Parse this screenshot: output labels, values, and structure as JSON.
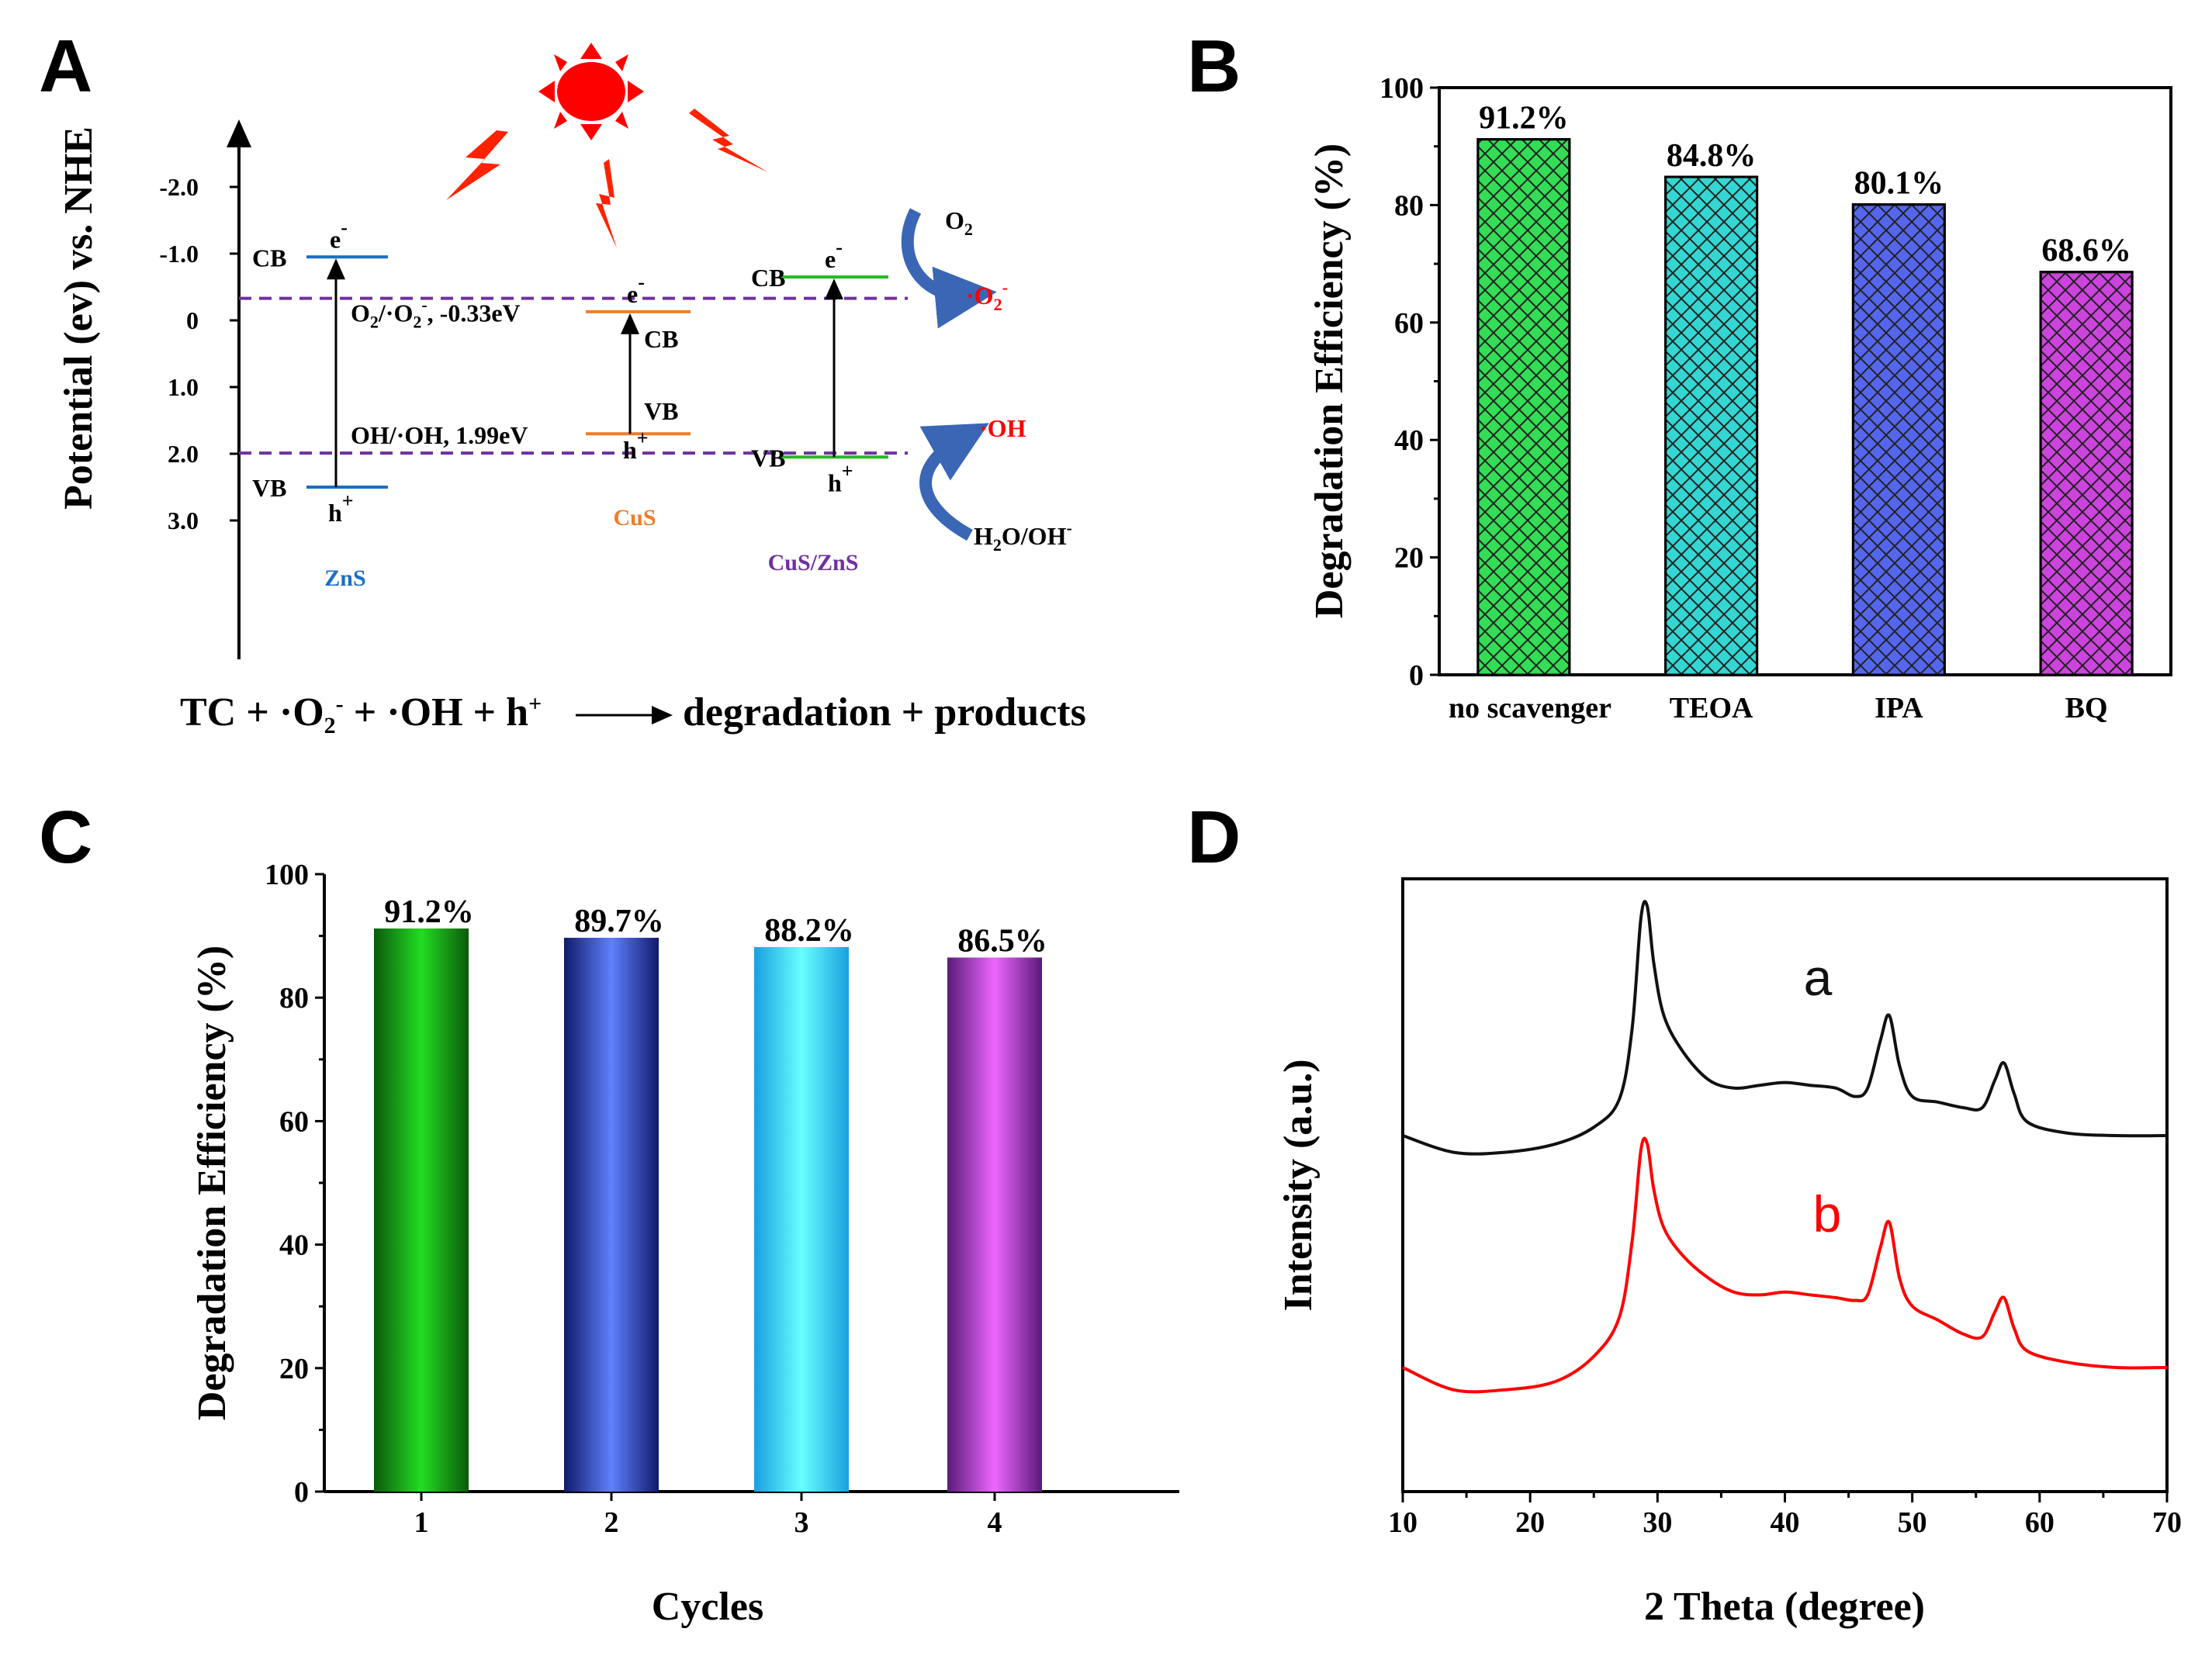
{
  "panel_labels": {
    "A": "A",
    "B": "B",
    "C": "C",
    "D": "D"
  },
  "colors": {
    "zns": "#1a6fc4",
    "cus": "#ee7d28",
    "cuszns": "#7030a0",
    "cuszns_level": "#22bb22",
    "dashed": "#7030a0",
    "sun": "#ff0000",
    "bolt": "#ff2200",
    "arrow_blue": "#3a66b5",
    "radical": "#ff0000",
    "curve_a": "#111111",
    "curve_b": "#ff0000"
  },
  "chart_data": [
    {
      "type": "diagram",
      "panel": "A",
      "ylabel": "Potential (ev) vs. NHE",
      "y_ticks": [
        "-2.0",
        "-1.0",
        "0",
        "1.0",
        "2.0",
        "3.0"
      ],
      "y_tick_values": [
        -2.0,
        -1.0,
        0,
        1.0,
        2.0,
        3.0
      ],
      "dashed_lines": [
        {
          "label": "O2/·O2-, -0.33eV",
          "label_parts": {
            "a": "O",
            "a_sub": "2",
            "b": "/·O",
            "b_sub": "2",
            "b_sup": "-",
            "c": ", -0.33eV"
          },
          "value": -0.33
        },
        {
          "label": "OH/·OH, 1.99eV",
          "value": 1.99
        }
      ],
      "materials": [
        {
          "name": "ZnS",
          "cb_label": "CB",
          "vb_label": "VB",
          "cb": -0.95,
          "vb": 2.5,
          "e": "e",
          "e_sup": "-",
          "h": "h",
          "h_sup": "+"
        },
        {
          "name": "CuS",
          "cb_label": "CB",
          "vb_label": "VB",
          "cb": -0.13,
          "vb": 1.7,
          "e": "e",
          "e_sup": "-",
          "h": "h",
          "h_sup": "+"
        },
        {
          "name": "CuS/ZnS",
          "cb_label": "CB",
          "vb_label": "VB",
          "cb": -0.65,
          "vb": 2.05,
          "e": "e",
          "e_sup": "-",
          "h": "h",
          "h_sup": "+"
        }
      ],
      "species": {
        "o2": "O",
        "o2_sub": "2",
        "o2rad": "·O",
        "o2rad_sub": "2",
        "o2rad_sup": "-",
        "oh": "·OH",
        "h2o_a": "H",
        "h2o_sub": "2",
        "h2o_b": "O/OH",
        "h2o_sup": "-"
      },
      "equation": {
        "p1": "TC + ·O",
        "p1_sub": "2",
        "p1_sup": "-",
        "p2": " + ·OH + h",
        "p2_sup": "+",
        "p3": "degradation + products"
      }
    },
    {
      "type": "bar",
      "panel": "B",
      "categories": [
        "no scavenger",
        "TEOA",
        "IPA",
        "BQ"
      ],
      "values": [
        91.2,
        84.8,
        80.1,
        68.6
      ],
      "labels": [
        "91.2%",
        "84.8%",
        "80.1%",
        "68.6%"
      ],
      "colors": [
        "#33dd55",
        "#33d6d2",
        "#5566ee",
        "#cc44dd"
      ],
      "ylabel": "Degradation Efficiency (%)",
      "ylim": [
        0,
        100
      ],
      "yticks": [
        "0",
        "20",
        "40",
        "60",
        "80",
        "100"
      ],
      "hatch": "crosshatch"
    },
    {
      "type": "bar",
      "panel": "C",
      "categories": [
        "1",
        "2",
        "3",
        "4"
      ],
      "values": [
        91.2,
        89.7,
        88.2,
        86.5
      ],
      "labels": [
        "91.2%",
        "89.7%",
        "88.2%",
        "86.5%"
      ],
      "colors": [
        [
          "#0b5a0b",
          "#22dd22",
          "#0b5a0b"
        ],
        [
          "#101a6a",
          "#6080ff",
          "#101a6a"
        ],
        [
          "#1aa0e0",
          "#66ffff",
          "#1aa0e0"
        ],
        [
          "#5a1a7a",
          "#ee66ff",
          "#5a1a7a"
        ]
      ],
      "ylabel": "Degradation Efficiency (%)",
      "xlabel": "Cycles",
      "ylim": [
        0,
        100
      ],
      "yticks": [
        "0",
        "20",
        "40",
        "60",
        "80",
        "100"
      ]
    },
    {
      "type": "line",
      "panel": "D",
      "xlabel": "2 Theta (degree)",
      "ylabel": "Intensity (a.u.)",
      "xlim": [
        10,
        70
      ],
      "xticks": [
        "10",
        "20",
        "30",
        "40",
        "50",
        "60",
        "70"
      ],
      "series": [
        {
          "name": "a",
          "x": [
            10,
            14,
            18,
            22,
            25,
            27,
            28,
            28.7,
            29.2,
            29.7,
            30.5,
            32,
            34,
            36,
            38,
            40,
            42,
            44,
            45.5,
            46.5,
            47.5,
            48.2,
            49,
            50,
            52,
            54,
            55.5,
            56.5,
            57.2,
            58,
            59,
            62,
            66,
            70
          ],
          "y": [
            0.0,
            -0.06,
            -0.06,
            -0.03,
            0.03,
            0.13,
            0.38,
            0.78,
            0.82,
            0.62,
            0.43,
            0.3,
            0.2,
            0.17,
            0.18,
            0.19,
            0.18,
            0.17,
            0.14,
            0.17,
            0.34,
            0.43,
            0.25,
            0.14,
            0.12,
            0.1,
            0.1,
            0.2,
            0.26,
            0.15,
            0.05,
            0.01,
            0.0,
            0.0
          ]
        },
        {
          "name": "b",
          "x": [
            10,
            14,
            18,
            22,
            25,
            27,
            28,
            28.7,
            29.2,
            29.7,
            30.5,
            32,
            34,
            36,
            38,
            40,
            42,
            44,
            45.5,
            46.5,
            47.5,
            48.2,
            49,
            50,
            52,
            54,
            55.5,
            56.5,
            57.2,
            58,
            59,
            62,
            66,
            70
          ],
          "y": [
            0.0,
            -0.08,
            -0.08,
            -0.05,
            0.04,
            0.18,
            0.45,
            0.78,
            0.8,
            0.64,
            0.5,
            0.4,
            0.32,
            0.27,
            0.26,
            0.27,
            0.26,
            0.25,
            0.24,
            0.26,
            0.43,
            0.52,
            0.32,
            0.22,
            0.17,
            0.12,
            0.11,
            0.2,
            0.25,
            0.14,
            0.06,
            0.02,
            0.0,
            0.0
          ]
        }
      ]
    }
  ]
}
